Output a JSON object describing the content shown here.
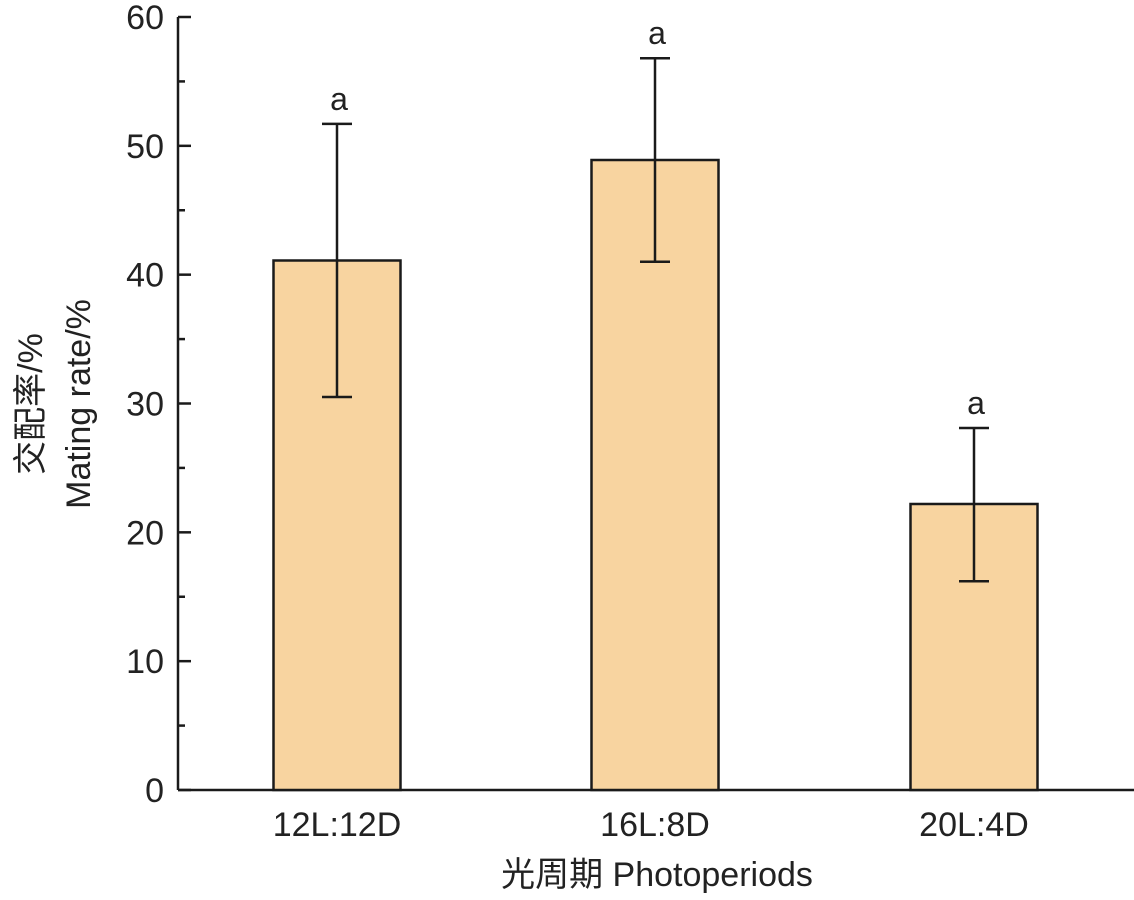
{
  "chart_data": {
    "type": "bar",
    "title": "",
    "xlabel": "光周期 Photoperiods",
    "ylabel": {
      "zh": "交配率/%",
      "en": "Mating rate/%"
    },
    "ylim": [
      0,
      60
    ],
    "yticks": [
      0,
      10,
      20,
      30,
      40,
      50,
      60
    ],
    "categories": [
      "12L:12D",
      "16L:8D",
      "20L:4D"
    ],
    "values": [
      41.1,
      48.9,
      22.2
    ],
    "error_lower": [
      30.5,
      41.0,
      16.2
    ],
    "error_upper": [
      51.7,
      56.8,
      28.1
    ],
    "significance_labels": [
      "a",
      "a",
      "a"
    ],
    "bar_color": "#f8d4a0",
    "bar_stroke": "#1a1a1a",
    "grid": false,
    "legend": "none"
  }
}
